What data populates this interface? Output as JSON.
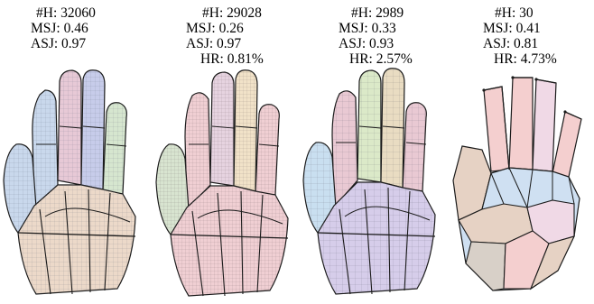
{
  "figure": {
    "panels": [
      {
        "h": "#H: 32060",
        "msj": "MSJ: 0.46",
        "asj": "ASJ: 0.97",
        "hr": ""
      },
      {
        "h": "#H: 29028",
        "msj": "MSJ: 0.26",
        "asj": "ASJ: 0.97",
        "hr": "HR: 0.81%"
      },
      {
        "h": "#H: 2989",
        "msj": "MSJ: 0.33",
        "asj": "ASJ: 0.93",
        "hr": "HR: 2.57%"
      },
      {
        "h": "#H: 30",
        "msj": "MSJ: 0.41",
        "asj": "ASJ: 0.81",
        "hr": "HR: 4.73%"
      }
    ]
  },
  "colors": {
    "panel1": [
      "#c9d8ec",
      "#e7c9d6",
      "#d6e6cf",
      "#c7ccea",
      "#ecd9c9"
    ],
    "panel2": [
      "#f0cfd3",
      "#e6d3e0",
      "#f1e2c8",
      "#d8e4d0"
    ],
    "panel3": [
      "#c9dff0",
      "#e9c9d3",
      "#dbe9c8",
      "#e9dcc2",
      "#d6cdea"
    ],
    "panel4": [
      "#f4cfcf",
      "#e6d2c4",
      "#cfe0f2",
      "#f0d9e6",
      "#d8d0c8"
    ],
    "edge": "#1b1b1b"
  }
}
